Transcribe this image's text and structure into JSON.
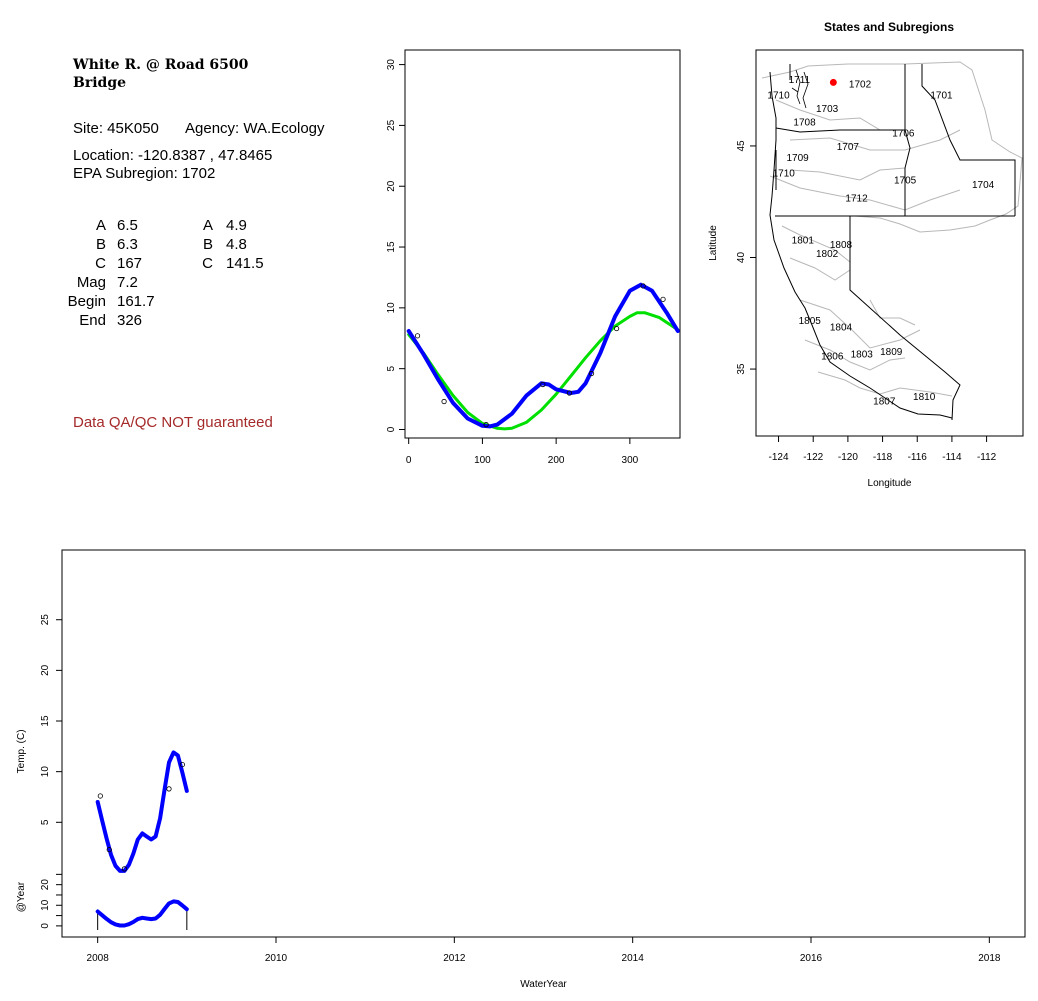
{
  "station": {
    "name_line1": "White R. @ Road 6500",
    "name_line2": "Bridge",
    "site": "Site: 45K050",
    "agency": "Agency: WA.Ecology",
    "location": "Location: -120.8387 , 47.8465",
    "subregion": "EPA Subregion: 1702",
    "params_left": [
      {
        "label": "A",
        "value": "6.5"
      },
      {
        "label": "B",
        "value": "6.3"
      },
      {
        "label": "C",
        "value": "167"
      },
      {
        "label": "Mag",
        "value": "7.2"
      },
      {
        "label": "Begin",
        "value": "161.7"
      },
      {
        "label": "End",
        "value": "326"
      }
    ],
    "params_right": [
      {
        "label": "A",
        "value": "4.9"
      },
      {
        "label": "B",
        "value": "4.8"
      },
      {
        "label": "C",
        "value": "141.5"
      }
    ],
    "qa_note": "Data QA/QC NOT guaranteed",
    "colors": {
      "qa": "#a52a2a"
    }
  },
  "chart_data": [
    {
      "type": "scatter",
      "id": "seasonal",
      "title": "",
      "xlabel": "",
      "ylabel": "",
      "xlim": [
        -5,
        368
      ],
      "ylim": [
        -0.7,
        31.2
      ],
      "xticks": [
        0,
        100,
        200,
        300
      ],
      "yticks": [
        0,
        5,
        10,
        15,
        20,
        25,
        30
      ],
      "grid": false,
      "points": [
        {
          "x": 12,
          "y": 7.7
        },
        {
          "x": 48,
          "y": 2.3
        },
        {
          "x": 105,
          "y": 0.4
        },
        {
          "x": 182,
          "y": 3.7
        },
        {
          "x": 218,
          "y": 3.0
        },
        {
          "x": 248,
          "y": 4.6
        },
        {
          "x": 282,
          "y": 8.3
        },
        {
          "x": 318,
          "y": 11.8
        },
        {
          "x": 345,
          "y": 10.7
        }
      ],
      "series": [
        {
          "kind": "harmonic1",
          "color": "#00e000",
          "x": [
            0,
            20,
            40,
            60,
            80,
            100,
            120,
            130,
            140,
            160,
            180,
            200,
            220,
            240,
            260,
            280,
            300,
            310,
            320,
            340,
            365
          ],
          "y": [
            7.8,
            6.3,
            4.5,
            2.8,
            1.4,
            0.5,
            0.1,
            0.05,
            0.1,
            0.6,
            1.6,
            2.9,
            4.4,
            5.9,
            7.3,
            8.5,
            9.3,
            9.6,
            9.6,
            9.2,
            8.2
          ]
        },
        {
          "kind": "harmonic2",
          "color": "#0000ff",
          "x": [
            0,
            20,
            40,
            60,
            80,
            100,
            110,
            120,
            140,
            160,
            180,
            190,
            200,
            220,
            230,
            240,
            260,
            280,
            300,
            315,
            330,
            350,
            365
          ],
          "y": [
            8.1,
            6.2,
            4.1,
            2.2,
            0.9,
            0.3,
            0.25,
            0.4,
            1.3,
            2.8,
            3.8,
            3.7,
            3.3,
            3.0,
            3.1,
            3.8,
            6.3,
            9.3,
            11.4,
            11.9,
            11.4,
            9.6,
            8.1
          ]
        }
      ]
    },
    {
      "type": "map",
      "id": "subregions",
      "title": "States and Subregions",
      "xlabel": "Longitude",
      "ylabel": "Latitude",
      "xlim": [
        -125.3,
        -109.9
      ],
      "ylim": [
        32.0,
        49.3
      ],
      "xticks": [
        -124,
        -122,
        -120,
        -118,
        -116,
        -114,
        -112
      ],
      "yticks": [
        35,
        40,
        45
      ],
      "site_marker": {
        "lon": -120.8387,
        "lat": 47.8465,
        "color": "#ff0000"
      },
      "labels": [
        {
          "text": "1711",
          "lon": -122.8,
          "lat": 48.0
        },
        {
          "text": "1702",
          "lon": -119.3,
          "lat": 47.8
        },
        {
          "text": "1701",
          "lon": -114.6,
          "lat": 47.3
        },
        {
          "text": "1710",
          "lon": -124.0,
          "lat": 47.3
        },
        {
          "text": "1703",
          "lon": -121.2,
          "lat": 46.7
        },
        {
          "text": "1708",
          "lon": -122.5,
          "lat": 46.1
        },
        {
          "text": "1706",
          "lon": -116.8,
          "lat": 45.6
        },
        {
          "text": "1707",
          "lon": -120.0,
          "lat": 45.0
        },
        {
          "text": "1709",
          "lon": -122.9,
          "lat": 44.5
        },
        {
          "text": "1710",
          "lon": -123.7,
          "lat": 43.8
        },
        {
          "text": "1705",
          "lon": -116.7,
          "lat": 43.5
        },
        {
          "text": "1704",
          "lon": -112.2,
          "lat": 43.3
        },
        {
          "text": "1712",
          "lon": -119.5,
          "lat": 42.7
        },
        {
          "text": "1801",
          "lon": -122.6,
          "lat": 40.8
        },
        {
          "text": "1808",
          "lon": -120.4,
          "lat": 40.6
        },
        {
          "text": "1802",
          "lon": -121.2,
          "lat": 40.2
        },
        {
          "text": "1805",
          "lon": -122.2,
          "lat": 37.2
        },
        {
          "text": "1804",
          "lon": -120.4,
          "lat": 36.9
        },
        {
          "text": "1806",
          "lon": -120.9,
          "lat": 35.6
        },
        {
          "text": "1803",
          "lon": -119.2,
          "lat": 35.7
        },
        {
          "text": "1809",
          "lon": -117.5,
          "lat": 35.8
        },
        {
          "text": "1810",
          "lon": -115.6,
          "lat": 33.8
        },
        {
          "text": "1807",
          "lon": -117.9,
          "lat": 33.6
        }
      ]
    },
    {
      "type": "line",
      "id": "timeseries",
      "title": "",
      "xlabel": "WaterYear",
      "ylabel": "Temp. (C)",
      "xlim": [
        2007.6,
        2018.4
      ],
      "ylim": [
        -0.4,
        30.6
      ],
      "xticks": [
        2008,
        2010,
        2012,
        2014,
        2016,
        2018
      ],
      "yticks": [
        5,
        10,
        15,
        20,
        25
      ],
      "grid": false,
      "color": "#0000ff",
      "points": [
        {
          "x": 2008.03,
          "y": 7.6
        },
        {
          "x": 2008.13,
          "y": 2.3
        },
        {
          "x": 2008.3,
          "y": 0.4
        },
        {
          "x": 2008.8,
          "y": 8.3
        },
        {
          "x": 2008.95,
          "y": 10.7
        }
      ],
      "fit": {
        "x": [
          2008.0,
          2008.05,
          2008.1,
          2008.15,
          2008.2,
          2008.25,
          2008.3,
          2008.35,
          2008.4,
          2008.45,
          2008.5,
          2008.55,
          2008.6,
          2008.65,
          2008.7,
          2008.75,
          2008.8,
          2008.85,
          2008.9,
          2008.95,
          2009.0
        ],
        "y": [
          7.0,
          5.2,
          3.4,
          1.8,
          0.7,
          0.2,
          0.2,
          0.8,
          1.9,
          3.3,
          3.9,
          3.6,
          3.3,
          3.6,
          5.4,
          8.2,
          10.9,
          11.9,
          11.6,
          9.9,
          8.1
        ]
      }
    },
    {
      "type": "line",
      "id": "annual",
      "title": "",
      "xlabel": "",
      "ylabel": "@Year",
      "xlim": [
        2007.6,
        2018.4
      ],
      "ylim": [
        -2,
        31
      ],
      "yticks": [
        0,
        10,
        20
      ],
      "yticks_minor": [
        5,
        15,
        25
      ],
      "color": "#0000ff",
      "segments": [
        2008.0,
        2009.0
      ],
      "fit": {
        "x": [
          2008.0,
          2008.05,
          2008.1,
          2008.15,
          2008.2,
          2008.25,
          2008.3,
          2008.35,
          2008.4,
          2008.45,
          2008.5,
          2008.55,
          2008.6,
          2008.65,
          2008.7,
          2008.75,
          2008.8,
          2008.85,
          2008.9,
          2008.95,
          2009.0
        ],
        "y": [
          7.0,
          5.2,
          3.4,
          1.8,
          0.7,
          0.2,
          0.2,
          0.8,
          1.9,
          3.3,
          3.9,
          3.6,
          3.3,
          3.6,
          5.4,
          8.2,
          10.9,
          11.9,
          11.6,
          9.9,
          8.1
        ]
      }
    }
  ]
}
